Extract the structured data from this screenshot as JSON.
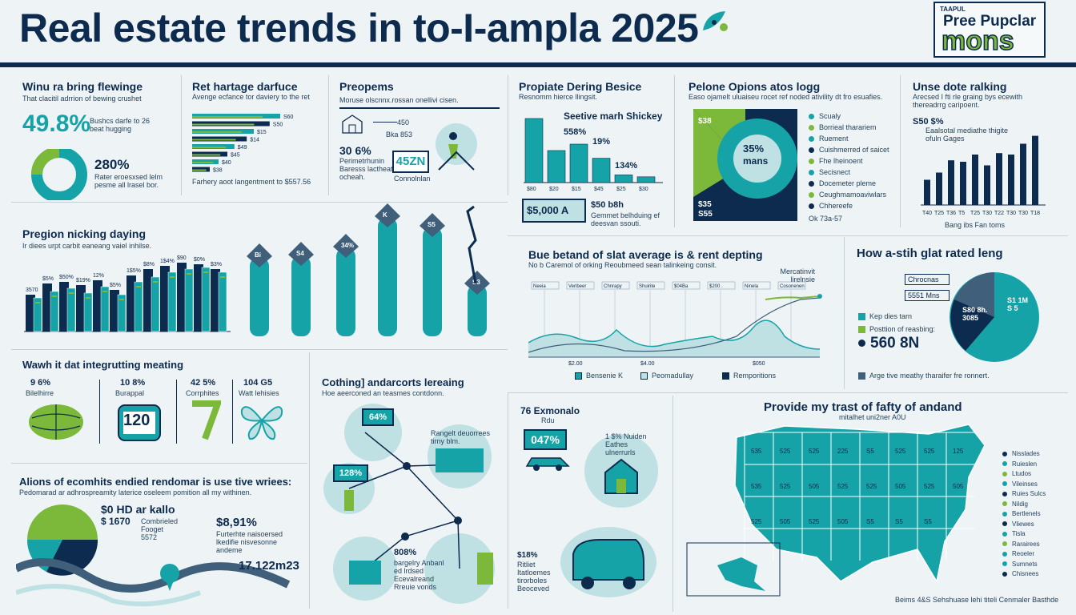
{
  "header": {
    "title": "Real estate trends in to-I-ampla 2025",
    "logo_small": "TAAPUL",
    "logo_line1": "Pree Pupclar",
    "logo_line2": "mons"
  },
  "panel1": {
    "title": "Winu ra bring flewinge",
    "subtitle": "That clacitil adrrion of bewing crushet",
    "stat1": "49.8%",
    "stat1_note": "Bushcs darfe to 26 beat hugging",
    "stat2": "280%",
    "stat2_note": "Rater eroesxsed lelm pesme all lrasel bor."
  },
  "panel2": {
    "title": "Ret hartage darfuce",
    "subtitle": "Avenge ecfance tor daviery to the ret",
    "labels": [
      "S60",
      "S50",
      "$15",
      "$14",
      "$49",
      "$45",
      "$40",
      "$38"
    ],
    "values": [
      100,
      88,
      70,
      62,
      48,
      40,
      30,
      20
    ],
    "footer": "Farhery aoot langentment to $557.56"
  },
  "panel3": {
    "title": "Preopems",
    "subtitle": "Moruse olscnnx.rossan onellivi cisen.",
    "mini_label1": "450",
    "mini_label2": "Bka 853",
    "stat": "30 6%",
    "stat_note": "Perimetrhunin Baresss lactheatin ocheah.",
    "badge": "45ZN",
    "badge_note": "Connolnlan"
  },
  "panel4": {
    "title": "Propiate Dering Besice",
    "subtitle": "Resnomm hierce llingsit.",
    "chart_title": "Seetive marh Shickey",
    "value_labels": [
      "558%",
      "19%",
      "134%"
    ],
    "bar_values": [
      100,
      50,
      60,
      38,
      12,
      9
    ],
    "x_labels": [
      "$80",
      "$20",
      "$15",
      "$45",
      "$25",
      "$30"
    ],
    "badge": "$5,000 A",
    "badge_note": "$50 b8h",
    "badge_note2": "Gemmet belhduing ef deesvan ssouti."
  },
  "panel5": {
    "title": "Pelone Opions atos logg",
    "subtitle": "Easo ojamelt uluaiseu rocet ref noded ativility dt fro esuafies.",
    "center_value": "35%",
    "center_label": "mans",
    "corner_value1": "$38",
    "corner_value2": "$35",
    "corner_value3": "S55",
    "legend": [
      "Scualy",
      "Borrieal tharariem",
      "Ruement",
      "Cuishmerred of saicet",
      "Fhe lheinoent",
      "Secisnect",
      "Docemeter pleme",
      "Ceughmamoaviwlars",
      "Chhereefe"
    ],
    "footer": "Ok 73a-57"
  },
  "panel6": {
    "title": "Unse dote ralking",
    "subtitle": "Arecsed I fti rle graing bys ecewith thereadrrg caripoent.",
    "stat": "S50  $%",
    "stat_note": "Eaalsotal mediathe thigite ofuln Gages",
    "values": [
      35,
      45,
      62,
      60,
      70,
      55,
      72,
      70,
      85,
      96
    ],
    "x_labels": [
      "T40",
      "T25",
      "T36",
      "T5",
      "T25",
      "T30",
      "T22",
      "T30",
      "T30",
      "T18"
    ],
    "footer": "Bang ibs  Fan toms"
  },
  "panel7": {
    "title": "Pregion nicking daying",
    "subtitle": "Ir diees urpt carbit eaneang vaiel inhilse.",
    "labels": [
      "3570",
      "$5%",
      "$50%",
      "$19%",
      "12%",
      "$5%",
      "1$5%",
      "$8%",
      "1$4%",
      "$90",
      "$0%",
      "$3%"
    ],
    "navy": [
      46,
      60,
      62,
      58,
      64,
      52,
      70,
      78,
      82,
      86,
      84,
      78
    ],
    "teal": [
      42,
      50,
      54,
      48,
      56,
      46,
      62,
      68,
      74,
      78,
      80,
      74
    ],
    "cylinder_labels": [
      "Bi",
      "S4",
      "34%",
      "K",
      "S5",
      "S3"
    ]
  },
  "panel8": {
    "title": "Bue betand of slat average is & rent depting",
    "subtitle": "No b Caremol of orking Reoubmeed sean talinkeing consit.",
    "chart_note": "Mercatinvit lirelnsie",
    "col_labels": [
      "Neeia",
      "Veribeer",
      "Chnrapy",
      "Shuirite",
      "$04Ba",
      "$200 .",
      "Ninela",
      "Cosonenen"
    ],
    "x_axis": [
      "$2.00",
      "$4.00",
      "$050"
    ],
    "legend": [
      "Bensenie K",
      "Peomadullay",
      "Remporitions"
    ]
  },
  "panel9": {
    "title": "How a-stih glat rated leng",
    "box1": "Chrocnas",
    "box2": "5551 Mns",
    "pie_label1": "S80 8h.",
    "pie_label2": "3085",
    "pie_label3": "S1 1M",
    "pie_label4": "S 5",
    "legend1": "Kep dies tarn",
    "legend2": "Posttion of reasbing:",
    "stat": "560 8N",
    "footer": "Arge tive meathy tharaifer fre ronnert."
  },
  "panel10": {
    "title": "Wawh it dat integrutting meating",
    "items": [
      {
        "value": "9 6%",
        "label": "Bilelhirre"
      },
      {
        "value": "10 8%",
        "label": "Burappal"
      },
      {
        "value": "42 5%",
        "label": "Corrphites"
      },
      {
        "value": "104 G5",
        "label": "Watt lehisies"
      }
    ],
    "badge": "120"
  },
  "panel11": {
    "title": "Alions of ecomhits endied rendomar is use tive wriees:",
    "subtitle": "Pedomarad ar adhrospreamity laterice oseleem pomition all my withinen.",
    "stat1": "$0 HD ar kallo",
    "stat2": "$ 1670",
    "stat2_note": "Combrieled Fooget 5572",
    "stat3": "$8,91%",
    "stat3_note": "Furterhte naisoersed lkedifie nisvesonne andeme",
    "stat4": "17.122m23"
  },
  "panel12": {
    "title": "Cothing] andarcorts lereaing",
    "subtitle": "Hoe aeerconed an teasmes contdonn.",
    "badges": [
      "64%",
      "128%"
    ],
    "note1": "Rangelt deuorrees tirny blm.",
    "stat1": "808%",
    "stat1_note": "bargelry Anbanl ed lrdsed Ecevalreand Rreuie vonds",
    "stat2": "$18%",
    "stat2_note": "Ritliet Itatloemes tirorboles Beoceved"
  },
  "panel13": {
    "title": "76 Exmonalo",
    "sub": "Rdu",
    "badge": "047%",
    "note": "1 $% Nuiden Eathes ulnerrurls"
  },
  "panel14": {
    "title": "Provide my trast of fafty of andand",
    "subtitle": "mitalhet uni2ner A0U",
    "state_labels": [
      "535",
      "525",
      "525",
      "225",
      "S5",
      "525",
      "525",
      "125",
      "535",
      "525",
      "505",
      "525",
      "525",
      "505",
      "525",
      "505",
      "525",
      "505",
      "525",
      "505",
      "S5",
      "S5",
      "S5"
    ],
    "legend": [
      "Nisslades",
      "Ruieslen",
      "Ltudos",
      "Vileinses",
      "Ruies Sulcs",
      "Nildig",
      "Bertlenels",
      "Vliewes",
      "Tisla",
      "Rarairees",
      "Reoeler",
      "Sumnets",
      "Chisnees"
    ],
    "footer": "Beims 4&S Sehshuase lehi titeli Cenmaler Basthde"
  },
  "colors": {
    "navy": "#0d2b4e",
    "teal": "#16a3a8",
    "green": "#7cb83a",
    "light_teal": "#bfe1e3",
    "background": "#eef3f5"
  }
}
